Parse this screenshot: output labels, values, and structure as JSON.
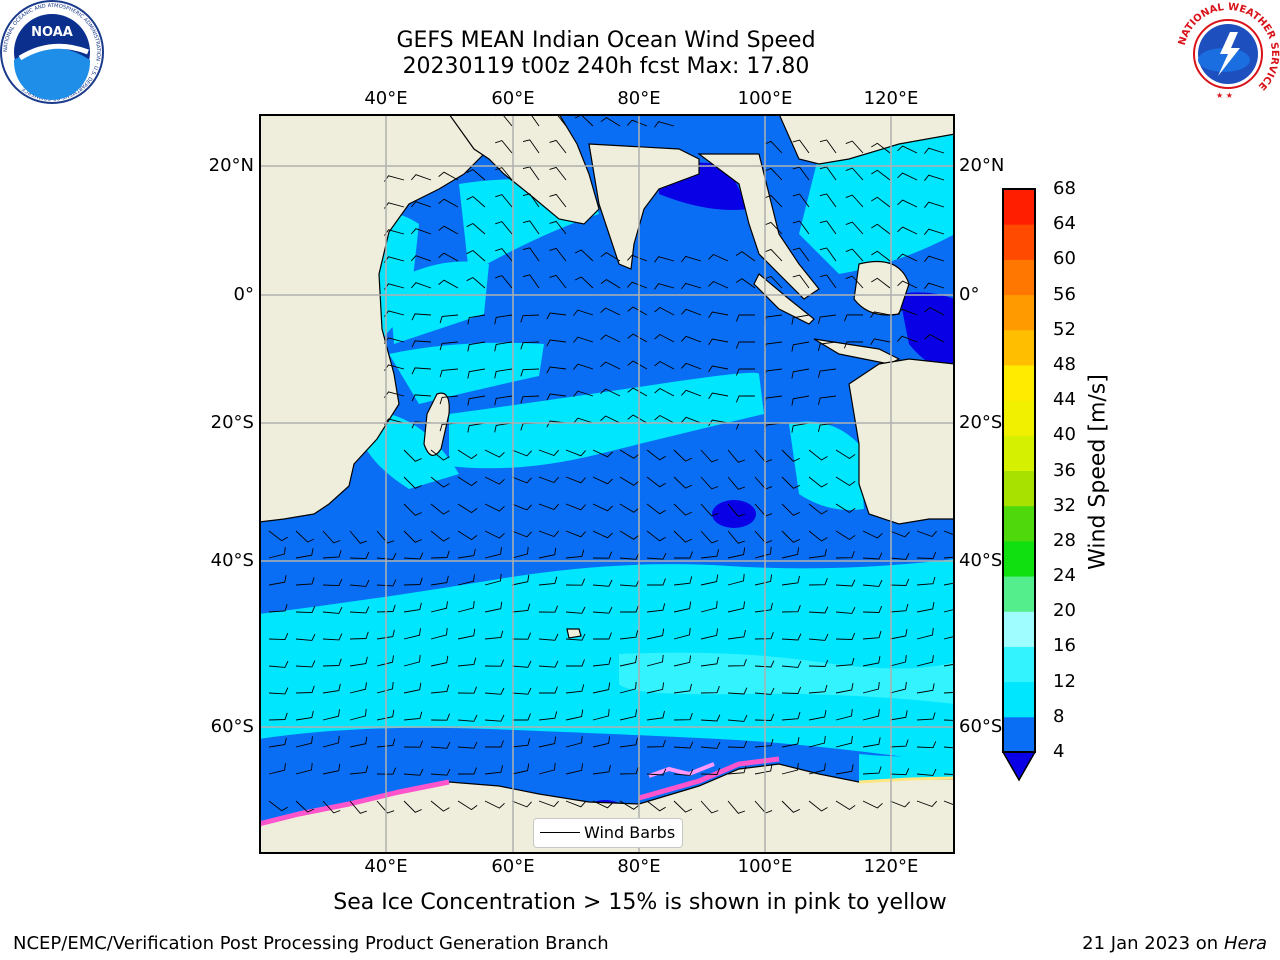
{
  "title_line1": "GEFS MEAN Indian Ocean Wind Speed",
  "title_line2": "20230119 t00z 240h fcst   Max: 17.80",
  "lon_ticks": [
    "40°E",
    "60°E",
    "80°E",
    "100°E",
    "120°E"
  ],
  "lat_ticks": [
    "20°N",
    "0°",
    "20°S",
    "40°S",
    "60°S"
  ],
  "colorbar": {
    "label": "Wind Speed [m/s]",
    "ticks": [
      "4",
      "8",
      "12",
      "16",
      "20",
      "24",
      "28",
      "32",
      "36",
      "40",
      "44",
      "48",
      "52",
      "56",
      "60",
      "64",
      "68"
    ],
    "colors": [
      "#0a6ef5",
      "#00e6ff",
      "#33f3ff",
      "#9ffcff",
      "#55ee8c",
      "#10e010",
      "#4fd80b",
      "#a8e000",
      "#d5f000",
      "#f0f000",
      "#ffeb00",
      "#ffbf00",
      "#ff9a00",
      "#ff7700",
      "#ff4a00",
      "#ff1e00"
    ],
    "underflow_color": "#0a00e6"
  },
  "legend": {
    "label": "Wind Barbs"
  },
  "note": "Sea Ice Concentration > 15% is shown in pink to yellow",
  "footer": {
    "left": "NCEP/EMC/Verification Post Processing Product Generation Branch",
    "right_date": "21 Jan 2023 on ",
    "right_system": "Hera"
  },
  "logos": {
    "noaa": {
      "text": "NOAA",
      "ring": "NATIONAL OCEANIC AND ATMOSPHERIC ADMINISTRATION · U.S. DEPARTMENT OF COMMERCE"
    },
    "nws": {
      "ring": "NATIONAL WEATHER SERVICE"
    }
  },
  "colors": {
    "land": "#efeedc",
    "ocean_low": "#0a6ef5",
    "ocean_mid": "#00e6ff",
    "ocean_high": "#33f3ff",
    "calm": "#0a00e6",
    "ice": "#ff55cc"
  }
}
